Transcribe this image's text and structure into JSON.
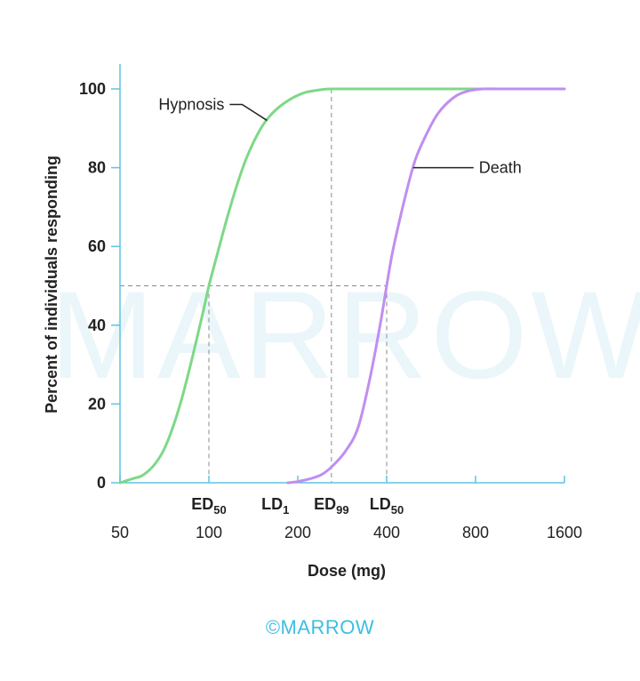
{
  "watermark": "MARROW",
  "footer_logo": "©MARROW",
  "chart_data": {
    "type": "line",
    "xlabel": "Dose (mg)",
    "ylabel": "Percent of individuals responding",
    "x_scale": "log2",
    "xlim": [
      50,
      1600
    ],
    "ylim": [
      0,
      100
    ],
    "x_ticks": [
      50,
      100,
      200,
      400,
      800,
      1600
    ],
    "x_tick_labels": [
      "50",
      "100",
      "200",
      "400",
      "800",
      "1600"
    ],
    "y_ticks": [
      0,
      20,
      40,
      60,
      80,
      100
    ],
    "y_tick_labels": [
      "0",
      "20",
      "40",
      "60",
      "80",
      "100"
    ],
    "grid": false,
    "colors": {
      "hypnosis": "#7ed887",
      "death": "#c08ef0",
      "axis": "#5fc3e0",
      "guide": "#8a8a8a"
    },
    "series": [
      {
        "name": "Hypnosis",
        "x": [
          50,
          55,
          60,
          66,
          72,
          80,
          88,
          96,
          100,
          105,
          115,
          125,
          135,
          150,
          165,
          185,
          210,
          240,
          260,
          300,
          400,
          800,
          1600
        ],
        "y": [
          0,
          1,
          2,
          5,
          10,
          20,
          32,
          44,
          50,
          56,
          67,
          76,
          83,
          90,
          94,
          97,
          99,
          99.8,
          100,
          100,
          100,
          100,
          100
        ]
      },
      {
        "name": "Death",
        "x": [
          185,
          200,
          220,
          240,
          260,
          290,
          320,
          350,
          380,
          400,
          420,
          460,
          500,
          550,
          600,
          680,
          760,
          850,
          1000,
          1600
        ],
        "y": [
          0,
          0.3,
          1,
          2,
          4,
          8,
          14,
          26,
          40,
          50,
          59,
          72,
          82,
          89,
          94,
          98,
          99.5,
          100,
          100,
          100
        ]
      }
    ],
    "annotations": [
      {
        "text": "Hypnosis",
        "series": "Hypnosis",
        "label_side": "left"
      },
      {
        "text": "Death",
        "series": "Death",
        "label_side": "right"
      }
    ],
    "markers": [
      {
        "label": "ED",
        "sub": "50",
        "x": 100,
        "y": 50,
        "vline_from": 0,
        "vline_to": 50
      },
      {
        "label": "LD",
        "sub": "1",
        "x": 185,
        "y": 0
      },
      {
        "label": "ED",
        "sub": "99",
        "x": 260,
        "y": 100,
        "vline_from": 0,
        "vline_to": 100
      },
      {
        "label": "LD",
        "sub": "50",
        "x": 400,
        "y": 50,
        "vline_from": 0,
        "vline_to": 50
      }
    ],
    "guides": [
      {
        "type": "hline",
        "y": 50,
        "x_from": 50,
        "x_to": 400
      }
    ]
  }
}
